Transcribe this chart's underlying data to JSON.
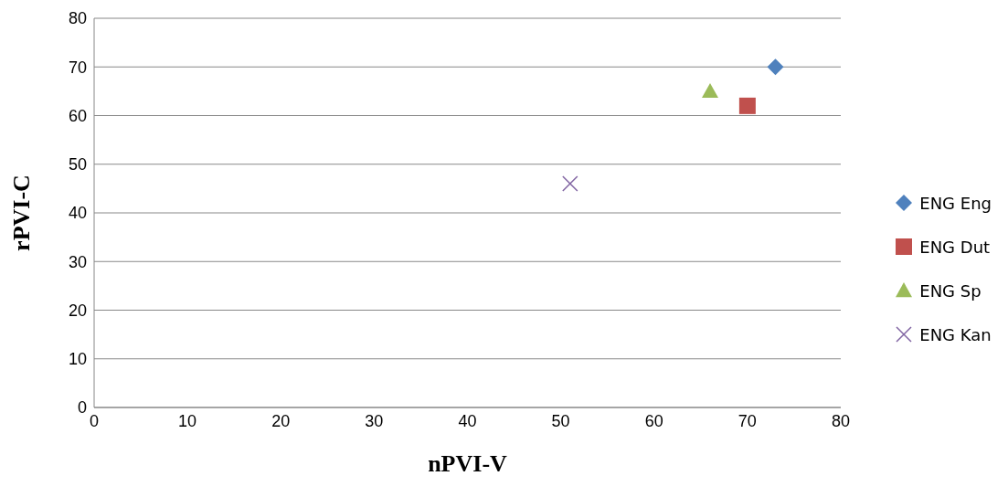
{
  "chart_data": {
    "type": "scatter",
    "xlabel": "nPVI-V",
    "ylabel": "rPVI-C",
    "xlim": [
      0,
      80
    ],
    "xticks": [
      0,
      10,
      20,
      30,
      40,
      50,
      60,
      70,
      80
    ],
    "ylim": [
      0,
      80
    ],
    "yticks": [
      0,
      10,
      20,
      30,
      40,
      50,
      60,
      70,
      80
    ],
    "grid": "y",
    "legend": "right",
    "series": [
      {
        "name": "ENG Eng",
        "color": "#4f81bd",
        "marker": "diamond",
        "x": [
          73
        ],
        "values": [
          70
        ]
      },
      {
        "name": "ENG Dut",
        "color": "#c0504d",
        "marker": "square",
        "x": [
          70
        ],
        "values": [
          62
        ]
      },
      {
        "name": "ENG Sp",
        "color": "#9bbb59",
        "marker": "triangle",
        "x": [
          66
        ],
        "values": [
          65
        ]
      },
      {
        "name": "ENG Kan",
        "color": "#8064a2",
        "marker": "cross",
        "x": [
          51
        ],
        "values": [
          46
        ]
      }
    ]
  }
}
